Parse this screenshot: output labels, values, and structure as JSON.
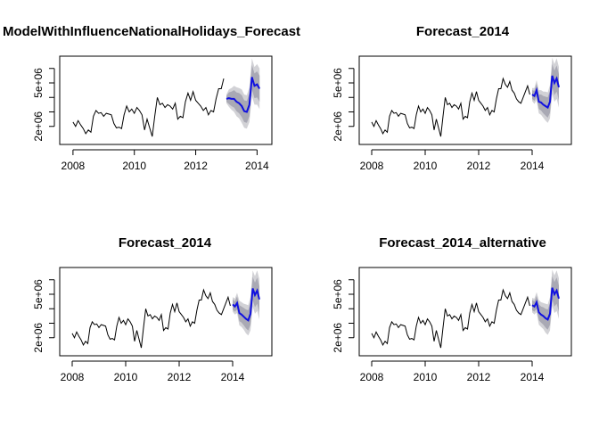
{
  "colors": {
    "history": "#000000",
    "forecast": "#1010e0",
    "band_outer": "#d2d2d6",
    "band_inner": "#a9a9b4",
    "axis": "#000000"
  },
  "chart_data": [
    {
      "type": "line",
      "title": "ModelWithInfluenceNationalHolidays_Forecast",
      "xlim": [
        2007.8,
        2014.25
      ],
      "ylim": [
        1000000,
        6600000
      ],
      "x_ticks": [
        2008,
        2010,
        2012,
        2014
      ],
      "x_tick_labels": [
        "2008",
        "2010",
        "2012",
        "2014"
      ],
      "y_ticks": [
        2000000,
        3000000,
        4000000,
        5000000,
        6000000
      ],
      "y_tick_labels": [
        "2e+06",
        "",
        "",
        "5e+06",
        ""
      ],
      "grid": false,
      "history": {
        "start": 2008.0,
        "step": 0.0833,
        "values": [
          2300000,
          2000000,
          2400000,
          2100000,
          1850000,
          1500000,
          1750000,
          1600000,
          2700000,
          3100000,
          2900000,
          2950000,
          2700000,
          2900000,
          2850000,
          2800000,
          2200000,
          1900000,
          1950000,
          1850000,
          2800000,
          3400000,
          3000000,
          3200000,
          2900000,
          3300000,
          3100000,
          2800000,
          1750000,
          2500000,
          1900000,
          1300000,
          2700000,
          4000000,
          3500000,
          3600000,
          3300000,
          3500000,
          3400000,
          3200000,
          3600000,
          2500000,
          2700000,
          2600000,
          3700000,
          4300000,
          3800000,
          4400000,
          3800000,
          3600000,
          3400000,
          3100000,
          3300000,
          2800000,
          3100000,
          3000000,
          3900000,
          4600000,
          4600000,
          5300000
        ]
      },
      "forecast": {
        "start": 2013.0,
        "step": 0.0833,
        "mean": [
          3900000,
          3950000,
          3900000,
          3900000,
          3700000,
          3600000,
          3400000,
          3050000,
          3000000,
          3500000,
          5400000,
          4800000,
          4900000,
          4600000
        ],
        "lo80": [
          3700000,
          3550000,
          3400000,
          3300000,
          3050000,
          2900000,
          2650000,
          2300000,
          2250000,
          2700000,
          4550000,
          3950000,
          4000000,
          3700000
        ],
        "hi80": [
          4100000,
          4350000,
          4400000,
          4500000,
          4350000,
          4300000,
          4150000,
          3800000,
          3750000,
          4300000,
          6250000,
          5650000,
          5800000,
          5500000
        ],
        "lo95": [
          3600000,
          3350000,
          3150000,
          3000000,
          2700000,
          2550000,
          2250000,
          1900000,
          1850000,
          2300000,
          4100000,
          3500000,
          3500000,
          3200000
        ],
        "hi95": [
          4200000,
          4550000,
          4650000,
          4800000,
          4700000,
          4650000,
          4550000,
          4200000,
          4150000,
          4700000,
          6700000,
          6100000,
          6300000,
          6000000
        ]
      }
    },
    {
      "type": "line",
      "title": "Forecast_2014",
      "xlim": [
        2007.8,
        2015.2
      ],
      "ylim": [
        1000000,
        6600000
      ],
      "x_ticks": [
        2008,
        2010,
        2012,
        2014
      ],
      "x_tick_labels": [
        "2008",
        "2010",
        "2012",
        "2014"
      ],
      "y_ticks": [
        2000000,
        3000000,
        4000000,
        5000000,
        6000000
      ],
      "y_tick_labels": [
        "2e+06",
        "",
        "",
        "5e+06",
        ""
      ],
      "grid": false,
      "history": {
        "start": 2008.0,
        "step": 0.0833,
        "values": [
          2300000,
          2000000,
          2400000,
          2100000,
          1850000,
          1500000,
          1750000,
          1600000,
          2700000,
          3100000,
          2900000,
          2950000,
          2700000,
          2900000,
          2850000,
          2800000,
          2200000,
          1900000,
          1950000,
          1850000,
          2800000,
          3400000,
          3000000,
          3200000,
          2900000,
          3300000,
          3100000,
          2800000,
          1750000,
          2500000,
          1900000,
          1300000,
          2700000,
          4000000,
          3500000,
          3600000,
          3300000,
          3500000,
          3400000,
          3200000,
          3600000,
          2500000,
          2700000,
          2600000,
          3700000,
          4300000,
          3800000,
          4400000,
          3800000,
          3600000,
          3400000,
          3100000,
          3300000,
          2800000,
          3100000,
          3000000,
          3900000,
          4600000,
          4600000,
          5300000,
          4900000,
          4700000,
          5100000,
          4500000,
          4300000,
          3900000,
          3700000,
          3600000,
          4000000,
          4400000,
          4800000,
          4200000
        ]
      },
      "forecast": {
        "start": 2014.0,
        "step": 0.0833,
        "mean": [
          4200000,
          4100000,
          4500000,
          3700000,
          3650000,
          3500000,
          3400000,
          3300000,
          3700000,
          5500000,
          5000000,
          5300000,
          4700000
        ],
        "lo80": [
          3900000,
          3750000,
          4050000,
          3200000,
          3100000,
          2900000,
          2750000,
          2600000,
          2950000,
          4700000,
          4150000,
          4400000,
          3800000
        ],
        "hi80": [
          4500000,
          4450000,
          4950000,
          4200000,
          4200000,
          4100000,
          4050000,
          4000000,
          4450000,
          6300000,
          5850000,
          6200000,
          5600000
        ],
        "lo95": [
          3750000,
          3550000,
          3800000,
          2900000,
          2800000,
          2600000,
          2400000,
          2250000,
          2550000,
          4250000,
          3700000,
          3900000,
          3300000
        ],
        "hi95": [
          4650000,
          4650000,
          5200000,
          4500000,
          4500000,
          4400000,
          4400000,
          4350000,
          4850000,
          6750000,
          6300000,
          6700000,
          6100000
        ]
      }
    },
    {
      "type": "line",
      "title": "Forecast_2014",
      "xlim": [
        2007.8,
        2015.2
      ],
      "ylim": [
        1000000,
        6600000
      ],
      "x_ticks": [
        2008,
        2010,
        2012,
        2014
      ],
      "x_tick_labels": [
        "2008",
        "2010",
        "2012",
        "2014"
      ],
      "y_ticks": [
        2000000,
        3000000,
        4000000,
        5000000,
        6000000
      ],
      "y_tick_labels": [
        "2e+06",
        "",
        "",
        "5e+06",
        ""
      ],
      "grid": false,
      "history": {
        "start": 2008.0,
        "step": 0.0833,
        "values": [
          2300000,
          2000000,
          2400000,
          2100000,
          1850000,
          1500000,
          1750000,
          1600000,
          2700000,
          3100000,
          2900000,
          2950000,
          2700000,
          2900000,
          2850000,
          2800000,
          2200000,
          1900000,
          1950000,
          1850000,
          2800000,
          3400000,
          3000000,
          3200000,
          2900000,
          3300000,
          3100000,
          2800000,
          1750000,
          2500000,
          1900000,
          1300000,
          2700000,
          4000000,
          3500000,
          3600000,
          3300000,
          3500000,
          3400000,
          3200000,
          3600000,
          2500000,
          2700000,
          2600000,
          3700000,
          4300000,
          3800000,
          4400000,
          3800000,
          3600000,
          3400000,
          3100000,
          3300000,
          2800000,
          3100000,
          3000000,
          3900000,
          4600000,
          4600000,
          5300000,
          4900000,
          4700000,
          5100000,
          4500000,
          4300000,
          3900000,
          3700000,
          3600000,
          4000000,
          4400000,
          4800000,
          4200000
        ]
      },
      "forecast": {
        "start": 2014.0,
        "step": 0.0833,
        "mean": [
          4300000,
          4150000,
          4400000,
          3700000,
          3600000,
          3450000,
          3300000,
          3200000,
          3650000,
          5400000,
          4950000,
          5250000,
          4650000
        ],
        "lo80": [
          3950000,
          3800000,
          3950000,
          3150000,
          3050000,
          2850000,
          2650000,
          2500000,
          2900000,
          4600000,
          4100000,
          4350000,
          3750000
        ],
        "hi80": [
          4650000,
          4500000,
          4850000,
          4250000,
          4150000,
          4050000,
          3950000,
          3900000,
          4400000,
          6200000,
          5800000,
          6150000,
          5550000
        ],
        "lo95": [
          3800000,
          3600000,
          3700000,
          2850000,
          2750000,
          2550000,
          2300000,
          2150000,
          2500000,
          4150000,
          3650000,
          3850000,
          3250000
        ],
        "hi95": [
          4800000,
          4700000,
          5100000,
          4550000,
          4450000,
          4350000,
          4300000,
          4250000,
          4800000,
          6650000,
          6250000,
          6650000,
          6050000
        ]
      }
    },
    {
      "type": "line",
      "title": "Forecast_2014_alternative",
      "xlim": [
        2007.8,
        2015.2
      ],
      "ylim": [
        1000000,
        6600000
      ],
      "x_ticks": [
        2008,
        2010,
        2012,
        2014
      ],
      "x_tick_labels": [
        "2008",
        "2010",
        "2012",
        "2014"
      ],
      "y_ticks": [
        2000000,
        3000000,
        4000000,
        5000000,
        6000000
      ],
      "y_tick_labels": [
        "2e+06",
        "",
        "",
        "5e+06",
        ""
      ],
      "grid": false,
      "history": {
        "start": 2008.0,
        "step": 0.0833,
        "values": [
          2300000,
          2000000,
          2400000,
          2100000,
          1850000,
          1500000,
          1750000,
          1600000,
          2700000,
          3100000,
          2900000,
          2950000,
          2700000,
          2900000,
          2850000,
          2800000,
          2200000,
          1900000,
          1950000,
          1850000,
          2800000,
          3400000,
          3000000,
          3200000,
          2900000,
          3300000,
          3100000,
          2800000,
          1750000,
          2500000,
          1900000,
          1300000,
          2700000,
          4000000,
          3500000,
          3600000,
          3300000,
          3500000,
          3400000,
          3200000,
          3600000,
          2500000,
          2700000,
          2600000,
          3700000,
          4300000,
          3800000,
          4400000,
          3800000,
          3600000,
          3400000,
          3100000,
          3300000,
          2800000,
          3100000,
          3000000,
          3900000,
          4600000,
          4600000,
          5300000,
          4900000,
          4700000,
          5100000,
          4500000,
          4300000,
          3900000,
          3700000,
          3600000,
          4000000,
          4400000,
          4800000,
          4200000
        ]
      },
      "forecast": {
        "start": 2014.0,
        "step": 0.0833,
        "mean": [
          4250000,
          4150000,
          4450000,
          3750000,
          3600000,
          3500000,
          3350000,
          3250000,
          3650000,
          5450000,
          5000000,
          5250000,
          4700000
        ],
        "lo80": [
          3900000,
          3800000,
          4000000,
          3200000,
          3050000,
          2900000,
          2700000,
          2550000,
          2900000,
          4650000,
          4150000,
          4350000,
          3800000
        ],
        "hi80": [
          4600000,
          4500000,
          4900000,
          4300000,
          4150000,
          4100000,
          4000000,
          3950000,
          4400000,
          6250000,
          5850000,
          6150000,
          5600000
        ],
        "lo95": [
          3750000,
          3600000,
          3750000,
          2900000,
          2750000,
          2600000,
          2350000,
          2200000,
          2500000,
          4200000,
          3700000,
          3850000,
          3300000
        ],
        "hi95": [
          4750000,
          4700000,
          5150000,
          4600000,
          4450000,
          4400000,
          4350000,
          4300000,
          4800000,
          6700000,
          6300000,
          6650000,
          6100000
        ]
      }
    }
  ]
}
